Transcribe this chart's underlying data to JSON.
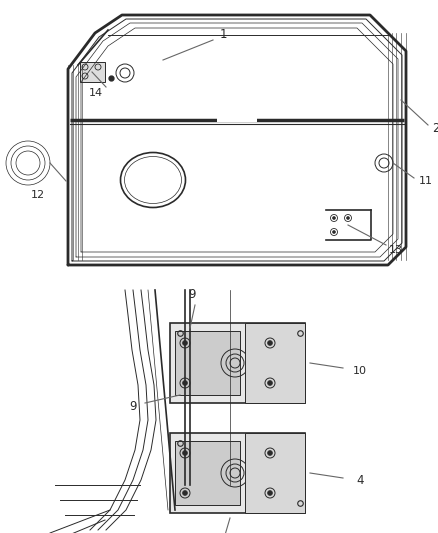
{
  "bg_color": "#ffffff",
  "line_color": "#2a2a2a",
  "label_color": "#1a1a1a",
  "leader_color": "#666666",
  "fig_width": 4.38,
  "fig_height": 5.33,
  "dpi": 100
}
